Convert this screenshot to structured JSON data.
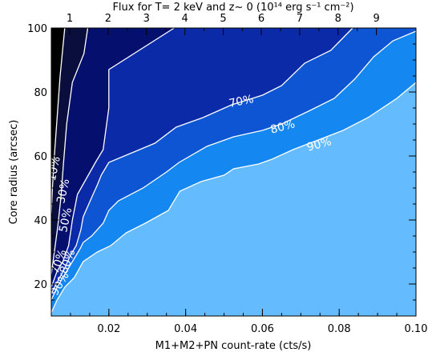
{
  "chart_data": {
    "type": "contour",
    "title": "Flux for T= 2 keV and z~ 0 (10¹⁴ erg s⁻¹ cm⁻²)",
    "xlabel": "M1+M2+PN count-rate (cts/s)",
    "ylabel": "Core radius (arcsec)",
    "xlim": [
      0.005,
      0.1
    ],
    "ylim": [
      10,
      100
    ],
    "x_ticks": [
      0.02,
      0.04,
      0.06,
      0.08,
      0.1
    ],
    "x_tick_labels": [
      "0.02",
      "0.04",
      "0.06",
      "0.08",
      "0.10"
    ],
    "y_ticks": [
      20,
      40,
      60,
      80,
      100
    ],
    "y_tick_labels": [
      "20",
      "40",
      "60",
      "80",
      "100"
    ],
    "top_ticks": [
      1,
      2,
      3,
      4,
      5,
      6,
      7,
      8,
      9
    ],
    "top_tick_labels": [
      "1",
      "2",
      "3",
      "4",
      "5",
      "6",
      "7",
      "8",
      "9"
    ],
    "top_tick_x": [
      0.0098,
      0.0198,
      0.0298,
      0.0398,
      0.0498,
      0.0597,
      0.0697,
      0.0797,
      0.0897
    ],
    "grid": false,
    "levels": [
      {
        "label": "10%",
        "color": "#0a0e3d",
        "curve": [
          [
            0.0085,
            100
          ],
          [
            0.0073,
            85
          ],
          [
            0.0064,
            70
          ],
          [
            0.0058,
            60
          ],
          [
            0.0053,
            50
          ],
          [
            0.005,
            42
          ]
        ]
      },
      {
        "label": "30%",
        "color": "#050f6e",
        "curve": [
          [
            0.0145,
            100
          ],
          [
            0.0135,
            92
          ],
          [
            0.0105,
            83
          ],
          [
            0.009,
            70
          ],
          [
            0.0082,
            58
          ],
          [
            0.0075,
            47
          ],
          [
            0.0067,
            38
          ],
          [
            0.0058,
            30
          ],
          [
            0.005,
            23
          ]
        ]
      },
      {
        "label": "50%",
        "color": "#0b2aa8",
        "curve": [
          [
            0.037,
            100
          ],
          [
            0.02,
            87
          ],
          [
            0.02,
            75
          ],
          [
            0.0185,
            62
          ],
          [
            0.0165,
            58
          ],
          [
            0.0118,
            48
          ],
          [
            0.0105,
            40
          ],
          [
            0.0095,
            32
          ],
          [
            0.008,
            27
          ],
          [
            0.0065,
            24
          ],
          [
            0.005,
            19
          ]
        ]
      },
      {
        "label": "70%",
        "color": "#0d55d3",
        "curve": [
          [
            0.0835,
            100
          ],
          [
            0.0778,
            93
          ],
          [
            0.071,
            89
          ],
          [
            0.065,
            82
          ],
          [
            0.06,
            79
          ],
          [
            0.052,
            76
          ],
          [
            0.0445,
            72
          ],
          [
            0.0375,
            69
          ],
          [
            0.032,
            64
          ],
          [
            0.02,
            58
          ],
          [
            0.018,
            54
          ],
          [
            0.017,
            51
          ],
          [
            0.0155,
            47
          ],
          [
            0.0133,
            41
          ],
          [
            0.0127,
            37
          ],
          [
            0.0115,
            32
          ],
          [
            0.01,
            29
          ],
          [
            0.0085,
            25
          ],
          [
            0.0063,
            20
          ],
          [
            0.005,
            17
          ]
        ]
      },
      {
        "label": "80%",
        "color": "#1487f0",
        "curve": [
          [
            0.1,
            99
          ],
          [
            0.094,
            96
          ],
          [
            0.089,
            91
          ],
          [
            0.084,
            84
          ],
          [
            0.0787,
            78
          ],
          [
            0.072,
            74
          ],
          [
            0.065,
            70
          ],
          [
            0.06,
            68
          ],
          [
            0.0525,
            66
          ],
          [
            0.0455,
            63
          ],
          [
            0.0383,
            58
          ],
          [
            0.035,
            55
          ],
          [
            0.0289,
            50
          ],
          [
            0.0225,
            46
          ],
          [
            0.02,
            43
          ],
          [
            0.0185,
            39
          ],
          [
            0.0155,
            35
          ],
          [
            0.0133,
            33
          ],
          [
            0.0125,
            31
          ],
          [
            0.01,
            26
          ],
          [
            0.0085,
            23
          ],
          [
            0.0065,
            19
          ],
          [
            0.005,
            15
          ]
        ]
      },
      {
        "label": "90%",
        "color": "#64bcff",
        "curve": [
          [
            0.1,
            83
          ],
          [
            0.095,
            78
          ],
          [
            0.0875,
            72
          ],
          [
            0.081,
            68
          ],
          [
            0.0745,
            65
          ],
          [
            0.068,
            62
          ],
          [
            0.0625,
            59
          ],
          [
            0.059,
            57.5
          ],
          [
            0.0525,
            56
          ],
          [
            0.05,
            54
          ],
          [
            0.044,
            52
          ],
          [
            0.0385,
            49
          ],
          [
            0.0355,
            43
          ],
          [
            0.0295,
            39
          ],
          [
            0.0245,
            36
          ],
          [
            0.0205,
            32
          ],
          [
            0.017,
            30
          ],
          [
            0.0133,
            27
          ],
          [
            0.011,
            22
          ],
          [
            0.0085,
            19
          ],
          [
            0.0065,
            15
          ],
          [
            0.005,
            11
          ]
        ]
      }
    ],
    "label_positions": [
      {
        "text": "70%",
        "x": 0.0545,
        "y": 77,
        "angle": -12
      },
      {
        "text": "80%",
        "x": 0.0653,
        "y": 69,
        "angle": -15
      },
      {
        "text": "90%",
        "x": 0.0748,
        "y": 63.5,
        "angle": -15
      },
      {
        "text": "10%",
        "x": 0.0058,
        "y": 56,
        "angle": -78
      },
      {
        "text": "30%",
        "x": 0.0082,
        "y": 49,
        "angle": -78
      },
      {
        "text": "50%",
        "x": 0.0088,
        "y": 40,
        "angle": -78
      },
      {
        "text": "70%",
        "x": 0.007,
        "y": 27,
        "angle": -70
      },
      {
        "text": "80%",
        "x": 0.0093,
        "y": 27,
        "angle": -70
      },
      {
        "text": "90%",
        "x": 0.0073,
        "y": 20,
        "angle": -60
      }
    ]
  }
}
